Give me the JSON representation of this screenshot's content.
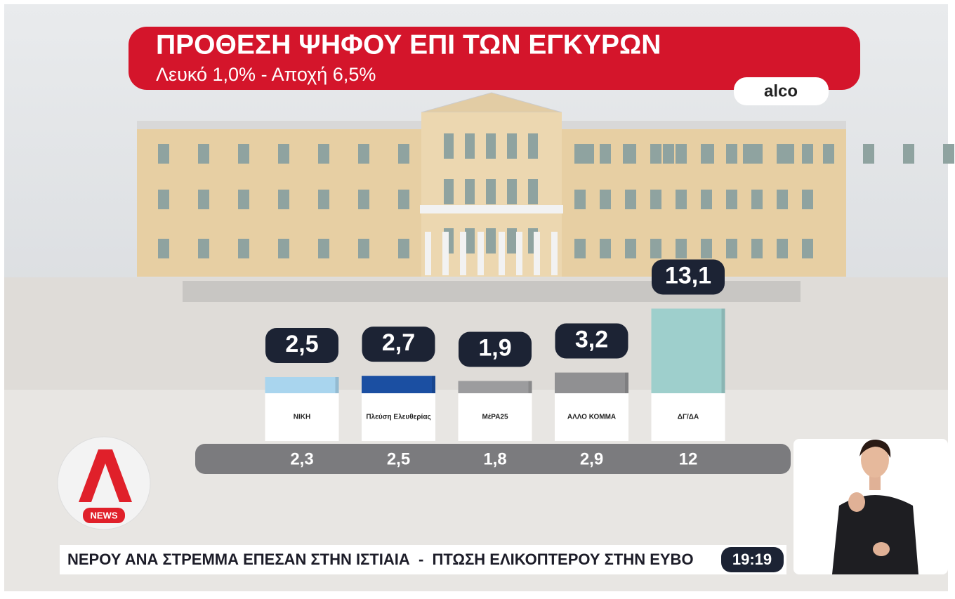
{
  "chart_data": {
    "type": "bar",
    "title": "ΠΡΟΘΕΣΗ ΨΗΦΟΥ ΕΠΙ ΤΩΝ ΕΓΚΥΡΩΝ",
    "subtitle": "Λευκό 1,0% - Αποχή 6,5%",
    "source": "alco",
    "categories": [
      "ΝΙΚΗ",
      "Πλεύση Ελευθερίας",
      "ΜέΡΑ25",
      "ΑΛΛΟ ΚΟΜΜΑ",
      "ΔΓ/ΔΑ"
    ],
    "values": [
      2.5,
      2.7,
      1.9,
      3.2,
      13.1
    ],
    "value_labels": [
      "2,5",
      "2,7",
      "1,9",
      "3,2",
      "13,1"
    ],
    "colors": [
      "#a9d5ee",
      "#1b4fa2",
      "#9c9c9e",
      "#909092",
      "#9ecfcc"
    ],
    "previous": {
      "values": [
        2.3,
        2.5,
        1.8,
        2.9,
        12
      ],
      "value_labels": [
        "2,3",
        "2,5",
        "1,8",
        "2,9",
        "12"
      ]
    }
  },
  "channel": {
    "logo": "NEWS",
    "ticker": "ΝΕΡΟΥ ΑΝΑ ΣΤΡΕΜΜΑ ΕΠΕΣΑΝ ΣΤΗΝ ΙΣΤΙΑΙΑ  -  ΠΤΩΣΗ ΕΛΙΚΟΠΤΕΡΟΥ ΣΤΗΝ ΕΥΒΟ",
    "time": "19:19"
  }
}
